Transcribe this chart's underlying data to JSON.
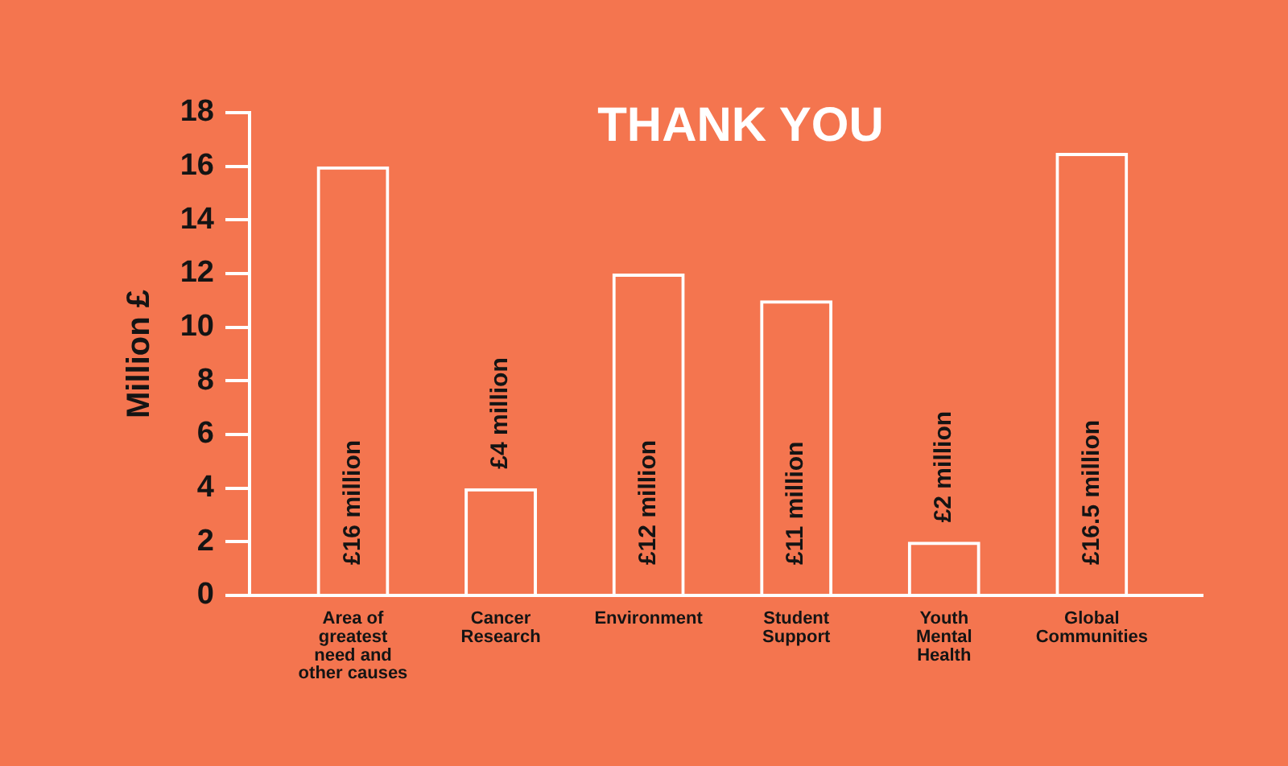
{
  "chart_data": {
    "type": "bar",
    "title": "THANK YOU",
    "ylabel": "Million £",
    "categories": [
      "Area of greatest need and other causes",
      "Cancer Research",
      "Environment",
      "Student Support",
      "Youth Mental Health",
      "Global Communities"
    ],
    "values": [
      16,
      4,
      12,
      11,
      2,
      16.5
    ],
    "color": "#ffffff",
    "value_labels": [
      "£16 million",
      "£4 million",
      "£12 million",
      "£11 million",
      "£2 million",
      "£16.5 million"
    ],
    "ylim": [
      0,
      18
    ],
    "yticks": [
      0,
      2,
      4,
      6,
      8,
      10,
      12,
      14,
      16,
      18
    ]
  }
}
